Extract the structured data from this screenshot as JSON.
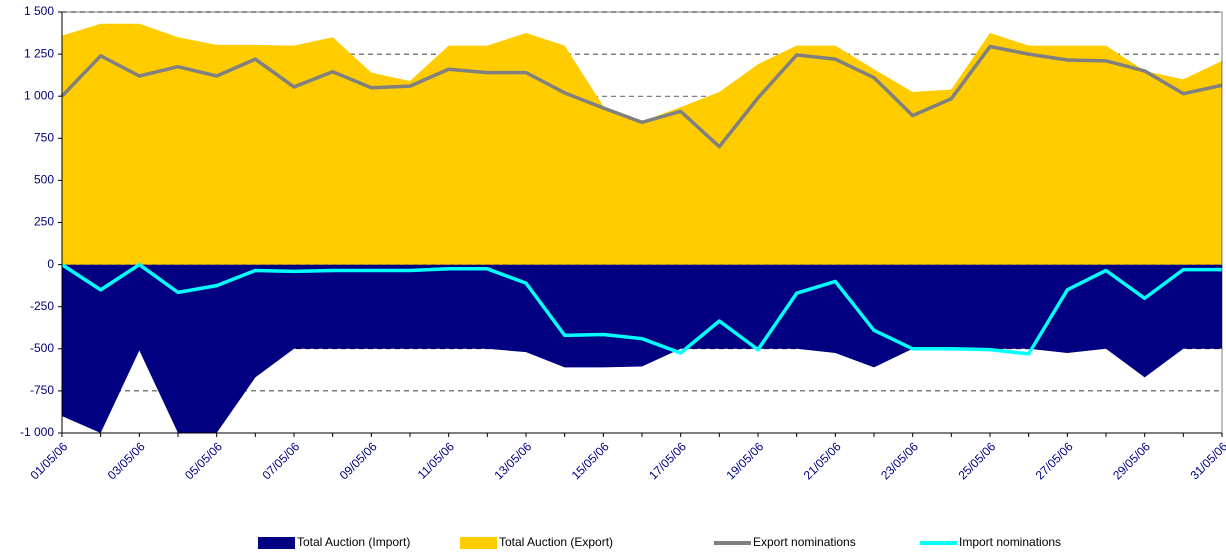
{
  "chart_data": {
    "type": "area",
    "categories": [
      "01/05/06",
      null,
      "03/05/06",
      null,
      "05/05/06",
      null,
      "07/05/06",
      null,
      "09/05/06",
      null,
      "11/05/06",
      null,
      "13/05/06",
      null,
      "15/05/06",
      null,
      "17/05/06",
      null,
      "19/05/06",
      null,
      "21/05/06",
      null,
      "23/05/06",
      null,
      "25/05/06",
      null,
      "27/05/06",
      null,
      "29/05/06",
      null,
      "31/05/06"
    ],
    "series": [
      {
        "name": "Total Auction (Import)",
        "type": "area",
        "color": "#000080",
        "values": [
          -900,
          -1000,
          -510,
          -1000,
          -1000,
          -670,
          -500,
          -500,
          -500,
          -500,
          -500,
          -500,
          -520,
          -610,
          -610,
          -605,
          -500,
          -500,
          -500,
          -500,
          -525,
          -610,
          -500,
          -500,
          -500,
          -500,
          -525,
          -500,
          -670,
          -500,
          -500
        ]
      },
      {
        "name": "Total Auction (Export)",
        "type": "area",
        "color": "#ffcc00",
        "values": [
          1360,
          1430,
          1430,
          1350,
          1305,
          1305,
          1300,
          1350,
          1140,
          1090,
          1300,
          1300,
          1375,
          1300,
          940,
          850,
          935,
          1025,
          1190,
          1300,
          1300,
          1160,
          1025,
          1040,
          1375,
          1300,
          1300,
          1300,
          1150,
          1100,
          1210
        ]
      },
      {
        "name": "Export nominations",
        "type": "line",
        "color": "#808080",
        "values": [
          1000,
          1240,
          1120,
          1175,
          1120,
          1220,
          1055,
          1145,
          1050,
          1060,
          1160,
          1140,
          1140,
          1020,
          930,
          845,
          910,
          700,
          990,
          1245,
          1220,
          1110,
          885,
          985,
          1295,
          1250,
          1215,
          1210,
          1150,
          1015,
          1065
        ]
      },
      {
        "name": "Import nominations",
        "type": "line",
        "color": "#00ffff",
        "values": [
          0,
          -150,
          0,
          -165,
          -125,
          -35,
          -40,
          -35,
          -35,
          -35,
          -25,
          -25,
          -110,
          -420,
          -415,
          -440,
          -525,
          -335,
          -505,
          -170,
          -100,
          -390,
          -500,
          -500,
          -505,
          -530,
          -150,
          -35,
          -200,
          -30,
          -30
        ]
      }
    ],
    "ylim": [
      -1000,
      1500
    ],
    "yticks": [
      {
        "value": -1000,
        "label": "-1 000"
      },
      -750,
      -500,
      -250,
      0,
      250,
      500,
      750,
      {
        "value": 1000,
        "label": "1 000"
      },
      {
        "value": 1250,
        "label": "1 250"
      },
      {
        "value": 1500,
        "label": "1 500"
      }
    ],
    "grid": true,
    "legend": "bottom"
  }
}
